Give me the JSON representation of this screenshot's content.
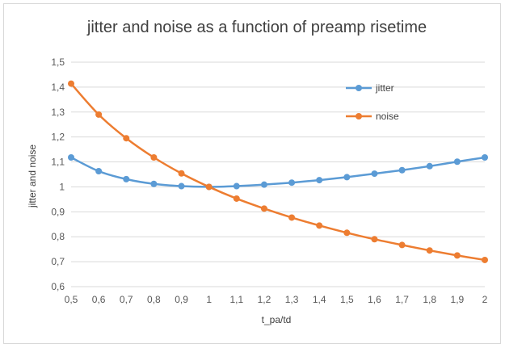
{
  "chart_data": {
    "type": "line",
    "title": "jitter and noise as a function of preamp risetime",
    "xlabel": "t_pa/td",
    "ylabel": "jitter and noise",
    "x": [
      0.5,
      0.6,
      0.7,
      0.8,
      0.9,
      1.0,
      1.1,
      1.2,
      1.3,
      1.4,
      1.5,
      1.6,
      1.7,
      1.8,
      1.9,
      2.0
    ],
    "x_tick_labels": [
      "0,5",
      "0,6",
      "0,7",
      "0,8",
      "0,9",
      "1",
      "1,1",
      "1,2",
      "1,3",
      "1,4",
      "1,5",
      "1,6",
      "1,7",
      "1,8",
      "1,9",
      "2"
    ],
    "ylim": [
      0.6,
      1.5
    ],
    "y_ticks": [
      0.6,
      0.7,
      0.8,
      0.9,
      1.0,
      1.1,
      1.2,
      1.3,
      1.4,
      1.5
    ],
    "y_tick_labels": [
      "0,6",
      "0,7",
      "0,8",
      "0,9",
      "1",
      "1,1",
      "1,2",
      "1,3",
      "1,4",
      "1,5"
    ],
    "grid": "horizontal",
    "legend_position": "right",
    "series": [
      {
        "name": "jitter",
        "color": "#5b9bd5",
        "values": [
          1.118,
          1.063,
          1.031,
          1.012,
          1.003,
          1.0,
          1.003,
          1.009,
          1.017,
          1.027,
          1.039,
          1.053,
          1.067,
          1.083,
          1.101,
          1.118
        ]
      },
      {
        "name": "noise",
        "color": "#ed7d31",
        "values": [
          1.414,
          1.29,
          1.195,
          1.118,
          1.054,
          1.0,
          0.953,
          0.913,
          0.877,
          0.845,
          0.816,
          0.79,
          0.767,
          0.745,
          0.725,
          0.707
        ]
      }
    ]
  }
}
